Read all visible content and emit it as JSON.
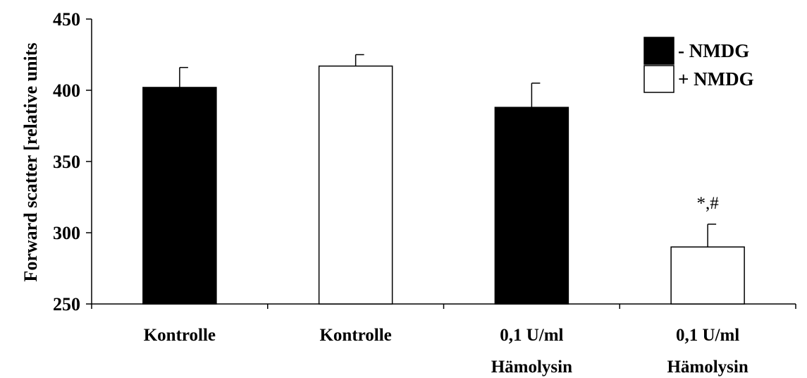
{
  "chart_data": {
    "type": "bar",
    "ylabel": "Forward scatter [relative units",
    "ylim": [
      250,
      450
    ],
    "yticks": [
      250,
      300,
      350,
      400,
      450
    ],
    "categories": [
      [
        "Kontrolle"
      ],
      [
        "Kontrolle"
      ],
      [
        "0,1 U/ml",
        "Hämolysin"
      ],
      [
        "0,1 U/ml",
        "Hämolysin"
      ]
    ],
    "series": [
      {
        "name": "- NMDG",
        "fill": "#000000"
      },
      {
        "name": "+ NMDG",
        "fill": "#ffffff"
      }
    ],
    "bars": [
      {
        "category": 0,
        "series": 0,
        "value": 402,
        "error": 14
      },
      {
        "category": 1,
        "series": 1,
        "value": 417,
        "error": 8
      },
      {
        "category": 2,
        "series": 0,
        "value": 388,
        "error": 17
      },
      {
        "category": 3,
        "series": 1,
        "value": 290,
        "error": 16,
        "annotation": "*,#"
      }
    ],
    "legend_position": "top-right",
    "grid": false
  }
}
